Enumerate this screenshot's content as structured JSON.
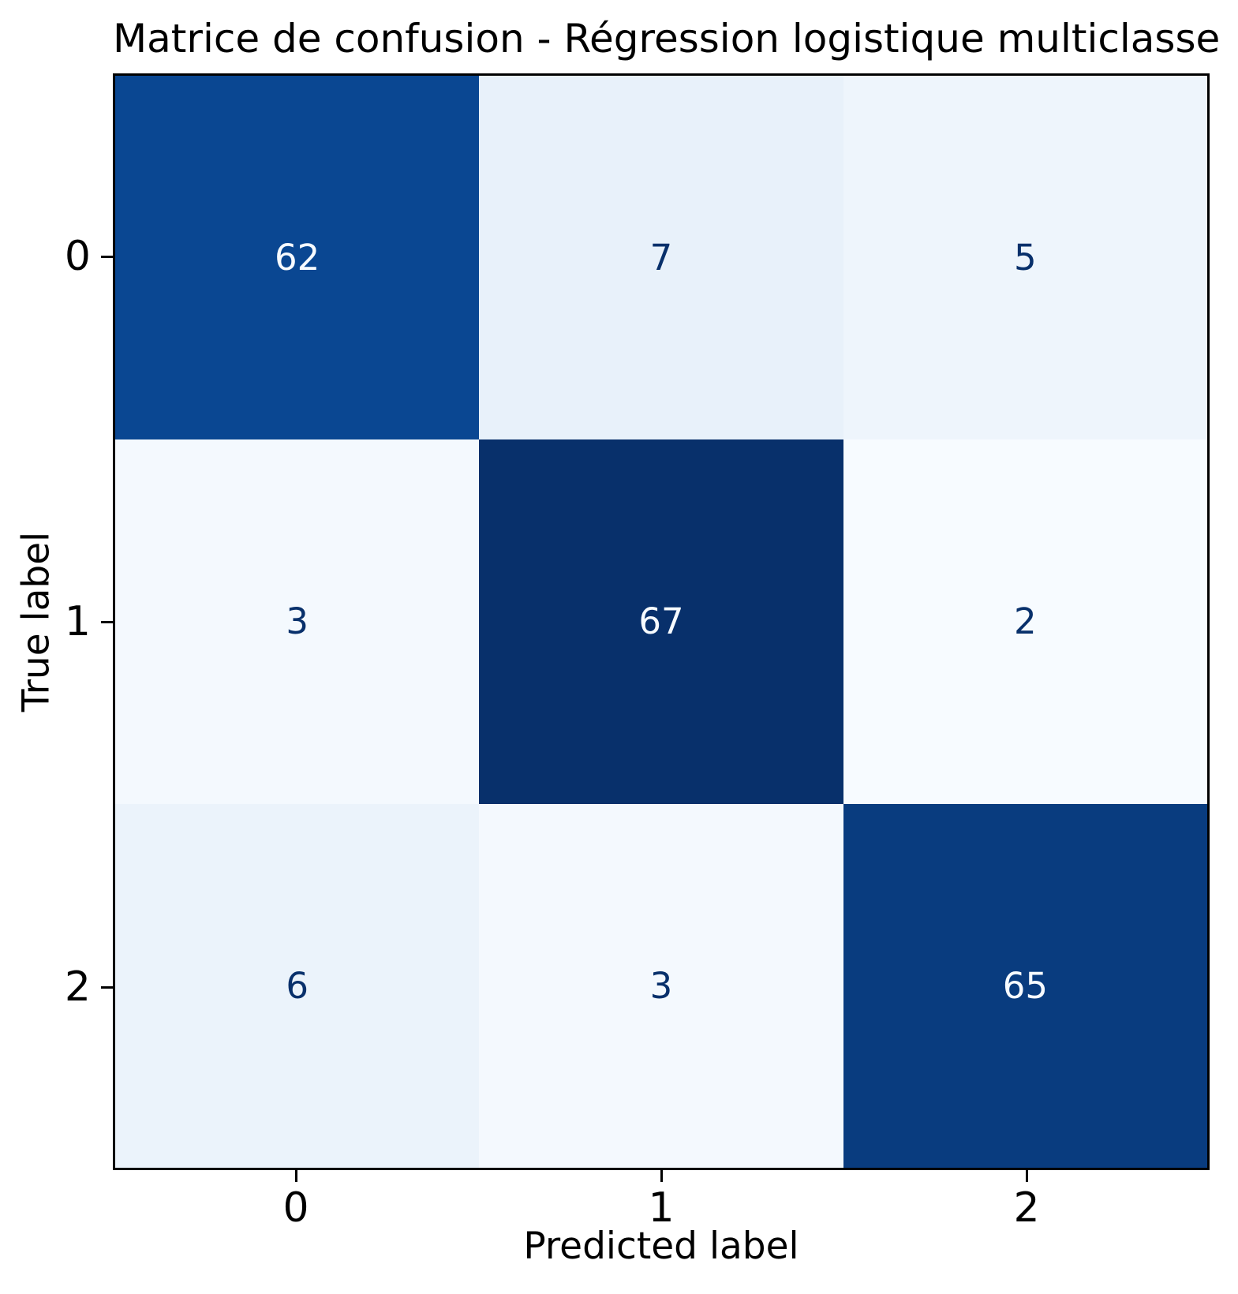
{
  "title": "Matrice de confusion - Régression logistique multiclasse",
  "chart_data": {
    "type": "heatmap",
    "subtype": "confusion-matrix",
    "title": "Matrice de confusion - Régression logistique multiclasse",
    "xlabel": "Predicted label",
    "ylabel": "True label",
    "x_ticklabels": [
      "0",
      "1",
      "2"
    ],
    "y_ticklabels": [
      "0",
      "1",
      "2"
    ],
    "matrix": [
      [
        62,
        7,
        5
      ],
      [
        3,
        67,
        2
      ],
      [
        6,
        3,
        65
      ]
    ],
    "colormap": "Blues",
    "vmin": 2,
    "vmax": 67,
    "grid": false,
    "legend": "none",
    "border_color": "#000000",
    "text_color_dark_cells": "#f7fbff",
    "text_color_light_cells": "#08306b",
    "cells": [
      {
        "row": 0,
        "col": 0,
        "value": "62",
        "bg": "#0a4792",
        "fg": "#f7fbff"
      },
      {
        "row": 0,
        "col": 1,
        "value": "7",
        "bg": "#e8f1fa",
        "fg": "#08306b"
      },
      {
        "row": 0,
        "col": 2,
        "value": "5",
        "bg": "#eef5fc",
        "fg": "#08306b"
      },
      {
        "row": 1,
        "col": 0,
        "value": "3",
        "bg": "#f4f9fe",
        "fg": "#08306b"
      },
      {
        "row": 1,
        "col": 1,
        "value": "67",
        "bg": "#08306b",
        "fg": "#f7fbff"
      },
      {
        "row": 1,
        "col": 2,
        "value": "2",
        "bg": "#f7fbff",
        "fg": "#08306b"
      },
      {
        "row": 2,
        "col": 0,
        "value": "6",
        "bg": "#ebf3fb",
        "fg": "#08306b"
      },
      {
        "row": 2,
        "col": 1,
        "value": "3",
        "bg": "#f4f9fe",
        "fg": "#08306b"
      },
      {
        "row": 2,
        "col": 2,
        "value": "65",
        "bg": "#093c7f",
        "fg": "#f7fbff"
      }
    ]
  }
}
